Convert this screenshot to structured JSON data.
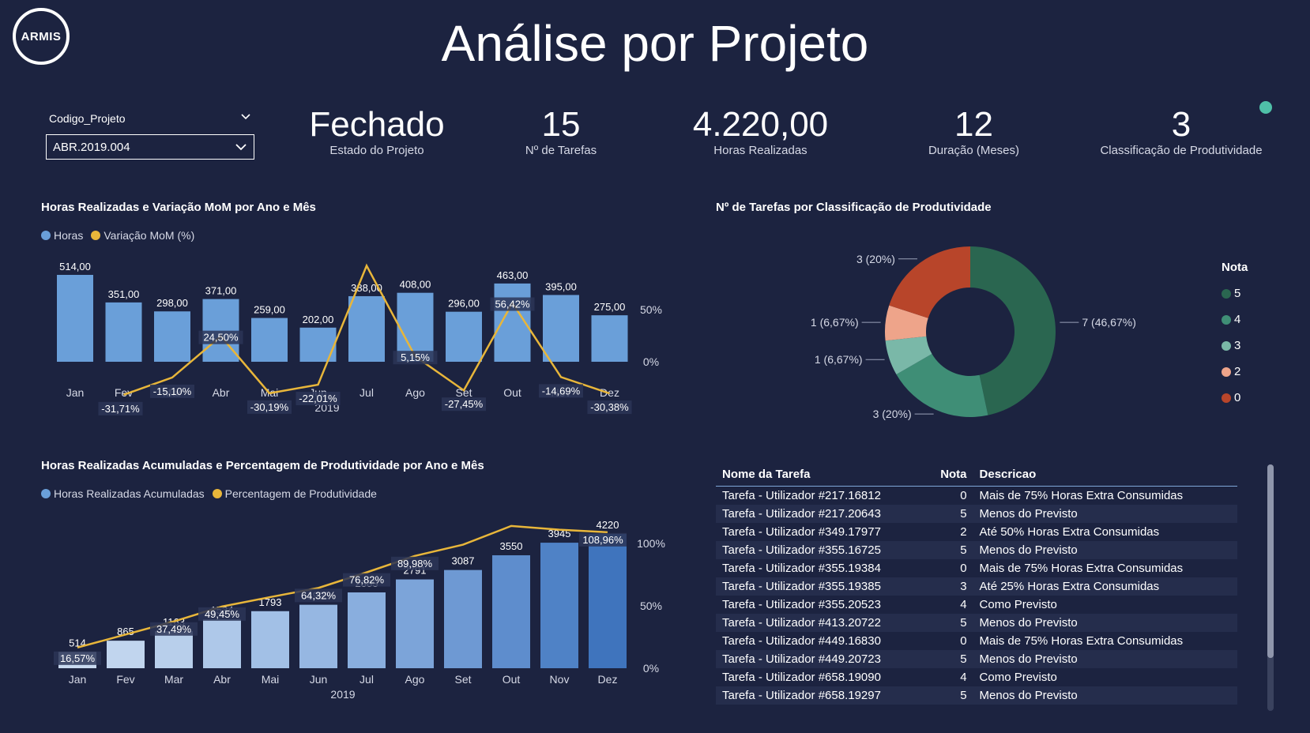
{
  "header": {
    "logo_text": "ARMIS",
    "title": "Análise por Projeto"
  },
  "slicer": {
    "label": "Codigo_Projeto",
    "value": "ABR.2019.004"
  },
  "kpis": [
    {
      "value": "Fechado",
      "label": "Estado do Projeto"
    },
    {
      "value": "15",
      "label": "Nº de Tarefas"
    },
    {
      "value": "4.220,00",
      "label": "Horas Realizadas"
    },
    {
      "value": "12",
      "label": "Duração (Meses)"
    },
    {
      "value": "3",
      "label": "Classificação de Produtividade"
    }
  ],
  "colors": {
    "background": "#1c2340",
    "bar": "#6a9fd9",
    "line": "#e8b63a",
    "teal_dot": "#4fc0a8"
  },
  "chart_data": [
    {
      "type": "bar",
      "title": "Horas Realizadas e Variação MoM por Ano e Mês",
      "legend": [
        "Horas",
        "Variação MoM (%)"
      ],
      "categories": [
        "Jan",
        "Fev",
        "Mar",
        "Abr",
        "Mai",
        "Jun",
        "Jul",
        "Ago",
        "Set",
        "Out",
        "Nov",
        "Dez"
      ],
      "xlabel": "2019",
      "series": [
        {
          "name": "Horas",
          "type": "bar",
          "values": [
            514,
            351,
            298,
            371,
            259,
            202,
            388,
            408,
            296,
            463,
            395,
            275
          ],
          "labels": [
            "514,00",
            "351,00",
            "298,00",
            "371,00",
            "259,00",
            "202,00",
            "388,00",
            "408,00",
            "296,00",
            "463,00",
            "395,00",
            "275,00"
          ]
        },
        {
          "name": "Variação MoM (%)",
          "type": "line",
          "values": [
            null,
            -31.71,
            -15.1,
            24.5,
            -30.19,
            -22.01,
            92.08,
            5.15,
            -27.45,
            56.42,
            -14.69,
            -30.38
          ],
          "labels": [
            "",
            "-31,71%",
            "-15,10%",
            "24,50%",
            "-30,19%",
            "-22,01%",
            "",
            "5,15%",
            "-27,45%",
            "56,42%",
            "-14,69%",
            "-30,38%"
          ]
        }
      ],
      "y2_ticks": [
        "50%",
        "0%"
      ]
    },
    {
      "type": "bar",
      "title": "Horas Realizadas Acumuladas e Percentagem de Produtividade por Ano e Mês",
      "legend": [
        "Horas Realizadas Acumuladas",
        "Percentagem de Produtividade"
      ],
      "categories": [
        "Jan",
        "Fev",
        "Mar",
        "Abr",
        "Mai",
        "Jun",
        "Jul",
        "Ago",
        "Set",
        "Out",
        "Nov",
        "Dez"
      ],
      "xlabel": "2019",
      "series": [
        {
          "name": "Horas Realizadas Acumuladas",
          "type": "bar",
          "values": [
            514,
            865,
            1163,
            1534,
            1793,
            1995,
            2383,
            2791,
            3087,
            3550,
            3945,
            4220
          ],
          "labels": [
            "514",
            "865",
            "1163",
            "1534",
            "1793",
            "1995",
            "2383",
            "2791",
            "3087",
            "3550",
            "3945",
            "4220"
          ]
        },
        {
          "name": "Percentagem de Produtividade",
          "type": "line",
          "values": [
            16.57,
            27.0,
            37.49,
            49.45,
            57.0,
            64.32,
            76.82,
            89.98,
            99.0,
            114.0,
            111.0,
            108.96
          ],
          "labels": [
            "16,57%",
            "",
            "37,49%",
            "49,45%",
            "",
            "64,32%",
            "76,82%",
            "89,98%",
            "",
            "",
            "",
            "108,96%"
          ]
        }
      ],
      "y2_ticks": [
        "100%",
        "50%",
        "0%"
      ]
    },
    {
      "type": "pie",
      "title": "Nº de Tarefas por Classificação de Produtividade",
      "legend_title": "Nota",
      "slices": [
        {
          "name": "5",
          "value": 7,
          "label": "7 (46,67%)",
          "color": "#2a6650"
        },
        {
          "name": "4",
          "value": 3,
          "label": "3 (20%)",
          "color": "#3f8e76"
        },
        {
          "name": "3",
          "value": 1,
          "label": "1 (6,67%)",
          "color": "#7ab8a8"
        },
        {
          "name": "2",
          "value": 1,
          "label": "1 (6,67%)",
          "color": "#eea48a"
        },
        {
          "name": "0",
          "value": 3,
          "label": "3 (20%)",
          "color": "#b8452a"
        }
      ]
    }
  ],
  "table": {
    "headers": [
      "Nome da Tarefa",
      "Nota",
      "Descricao"
    ],
    "rows": [
      [
        "Tarefa - Utilizador #217.16812",
        "0",
        "Mais de 75% Horas Extra Consumidas"
      ],
      [
        "Tarefa - Utilizador #217.20643",
        "5",
        "Menos do Previsto"
      ],
      [
        "Tarefa - Utilizador #349.17977",
        "2",
        "Até 50% Horas Extra Consumidas"
      ],
      [
        "Tarefa - Utilizador #355.16725",
        "5",
        "Menos do Previsto"
      ],
      [
        "Tarefa - Utilizador #355.19384",
        "0",
        "Mais de 75% Horas Extra Consumidas"
      ],
      [
        "Tarefa - Utilizador #355.19385",
        "3",
        "Até 25% Horas Extra Consumidas"
      ],
      [
        "Tarefa - Utilizador #355.20523",
        "4",
        "Como Previsto"
      ],
      [
        "Tarefa - Utilizador #413.20722",
        "5",
        "Menos do Previsto"
      ],
      [
        "Tarefa - Utilizador #449.16830",
        "0",
        "Mais de 75% Horas Extra Consumidas"
      ],
      [
        "Tarefa - Utilizador #449.20723",
        "5",
        "Menos do Previsto"
      ],
      [
        "Tarefa - Utilizador #658.19090",
        "4",
        "Como Previsto"
      ],
      [
        "Tarefa - Utilizador #658.19297",
        "5",
        "Menos do Previsto"
      ]
    ]
  }
}
